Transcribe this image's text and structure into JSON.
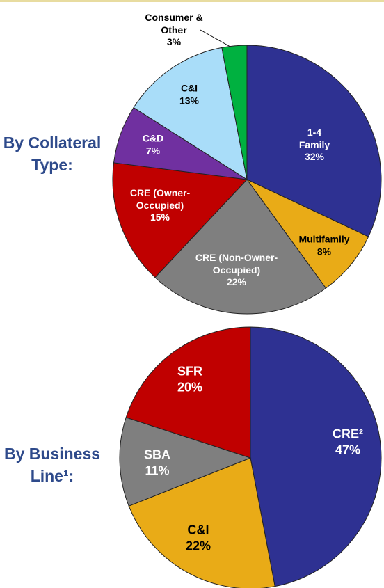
{
  "chart_data": [
    {
      "type": "pie",
      "title": "By Collateral Type:",
      "categories": [
        "1-4 Family",
        "Multifamily",
        "CRE (Non-Owner-Occupied)",
        "CRE (Owner-Occupied)",
        "C&D",
        "C&I",
        "Consumer & Other"
      ],
      "values": [
        32,
        8,
        22,
        15,
        7,
        13,
        3
      ],
      "value_labels": [
        "32%",
        "8%",
        "22%",
        "15%",
        "7%",
        "13%",
        "3%"
      ],
      "colors": [
        "#2e3192",
        "#e9ab17",
        "#7f7f7f",
        "#c00000",
        "#7030a0",
        "#a9ddf9",
        "#00b140"
      ]
    },
    {
      "type": "pie",
      "title": "By Business Line¹:",
      "categories": [
        "CRE²",
        "C&I",
        "SBA",
        "SFR"
      ],
      "values": [
        47,
        22,
        11,
        20
      ],
      "value_labels": [
        "47%",
        "22%",
        "11%",
        "20%"
      ],
      "colors": [
        "#2e3192",
        "#e9ab17",
        "#7f7f7f",
        "#c00000"
      ]
    }
  ]
}
